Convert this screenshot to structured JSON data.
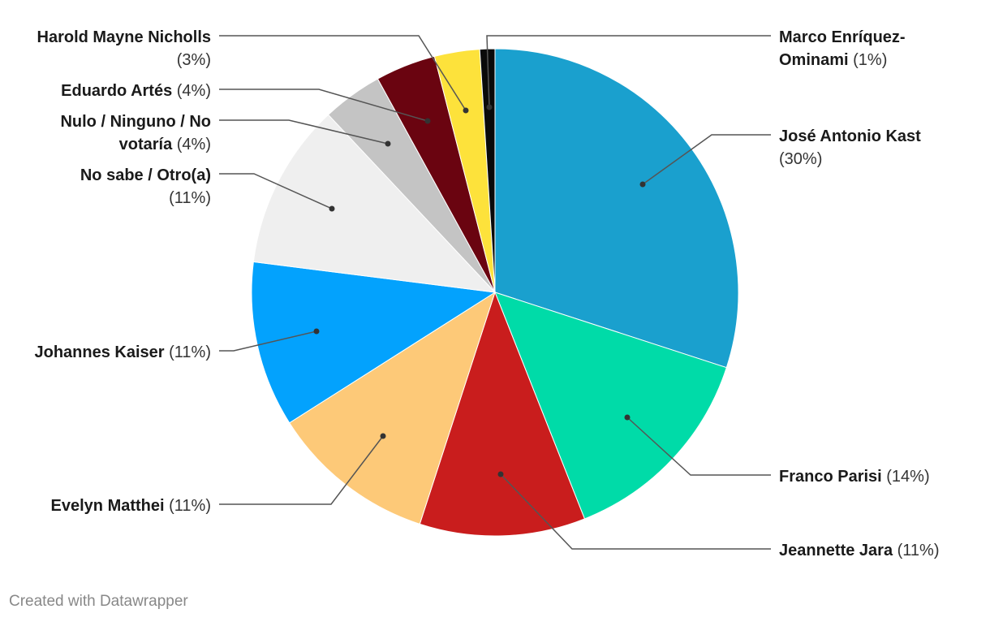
{
  "chart_data": {
    "type": "pie",
    "start_angle_deg": 0,
    "direction": "clockwise",
    "slices": [
      {
        "name": "José Antonio Kast",
        "value": 30,
        "label_lines": [
          [
            "José Antonio Kast",
            ""
          ],
          [
            "",
            "(30%)"
          ]
        ],
        "color": "#1aa0ce"
      },
      {
        "name": "Franco Parisi",
        "value": 14,
        "label_lines": [
          [
            "Franco Parisi",
            " (14%)"
          ]
        ],
        "color": "#00dba8"
      },
      {
        "name": "Jeannette Jara",
        "value": 11,
        "label_lines": [
          [
            "Jeannette Jara",
            " (11%)"
          ]
        ],
        "color": "#c91d1d"
      },
      {
        "name": "Evelyn Matthei",
        "value": 11,
        "label_lines": [
          [
            "Evelyn Matthei",
            " (11%)"
          ]
        ],
        "color": "#fdc978"
      },
      {
        "name": "Johannes Kaiser",
        "value": 11,
        "label_lines": [
          [
            "Johannes Kaiser",
            " (11%)"
          ]
        ],
        "color": "#03a2fd"
      },
      {
        "name": "No sabe / Otro(a)",
        "value": 11,
        "label_lines": [
          [
            "No sabe / Otro(a)",
            ""
          ],
          [
            "",
            "(11%)"
          ]
        ],
        "color": "#efefef"
      },
      {
        "name": "Nulo / Ninguno / No votaría",
        "value": 4,
        "label_lines": [
          [
            "Nulo / Ninguno / No",
            ""
          ],
          [
            "votaría",
            " (4%)"
          ]
        ],
        "color": "#c4c4c4"
      },
      {
        "name": "Eduardo Artés",
        "value": 4,
        "label_lines": [
          [
            "Eduardo Artés",
            " (4%)"
          ]
        ],
        "color": "#6a0410"
      },
      {
        "name": "Harold Mayne Nicholls",
        "value": 3,
        "label_lines": [
          [
            "Harold Mayne Nicholls",
            ""
          ],
          [
            "",
            "(3%)"
          ]
        ],
        "color": "#fde23b"
      },
      {
        "name": "Marco Enríquez-Ominami",
        "value": 1,
        "label_lines": [
          [
            "Marco Enríquez-",
            ""
          ],
          [
            "Ominami",
            " (1%)"
          ]
        ],
        "color": "#0a0a0a"
      }
    ]
  },
  "footer": {
    "credit": "Created with Datawrapper"
  }
}
